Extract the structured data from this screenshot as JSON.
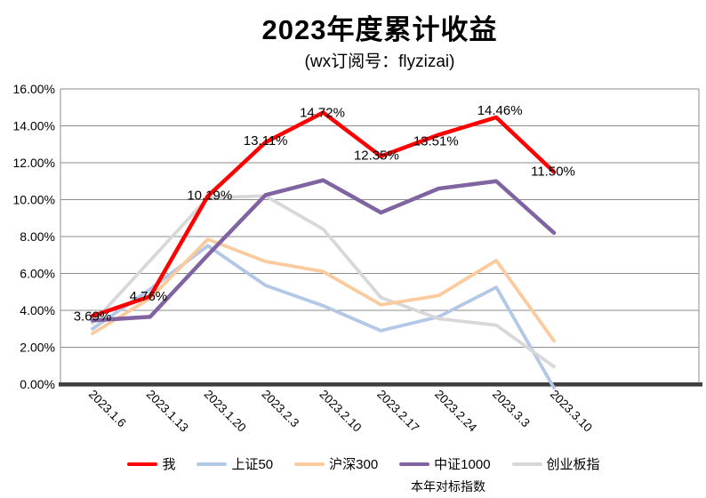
{
  "title": "2023年度累计收益",
  "subtitle": "(wx订阅号：flyzizai)",
  "chart_data": {
    "type": "line",
    "title": "2023年度累计收益",
    "subtitle": "(wx订阅号：flyzizai)",
    "categories": [
      "2023.1.6",
      "2023.1.13",
      "2023.1.20",
      "2023.2.3",
      "2023.2.10",
      "2023.2.17",
      "2023.2.24",
      "2023.3.3",
      "2023.3.10"
    ],
    "series": [
      {
        "name": "我",
        "color": "#FF0000",
        "values": [
          3.69,
          4.76,
          10.19,
          13.11,
          14.72,
          12.35,
          13.51,
          14.46,
          11.5
        ],
        "data_labels": [
          "3.69%",
          "4.76%",
          "10.19%",
          "13.11%",
          "14.72%",
          "12.35%",
          "13.51%",
          "14.46%",
          "11.50%"
        ]
      },
      {
        "name": "上证50",
        "color": "#B3C7E6",
        "values": [
          3.0,
          5.15,
          7.5,
          5.35,
          4.25,
          2.9,
          3.65,
          5.25,
          -0.2
        ]
      },
      {
        "name": "沪深300",
        "color": "#FBCB9E",
        "values": [
          2.75,
          4.65,
          7.85,
          6.65,
          6.1,
          4.3,
          4.8,
          6.7,
          2.35
        ]
      },
      {
        "name": "中证1000",
        "color": "#8064A2",
        "values": [
          3.45,
          3.65,
          7.0,
          10.25,
          11.05,
          9.3,
          10.6,
          11.0,
          8.2
        ]
      },
      {
        "name": "创业板指",
        "color": "#D8D8D8",
        "values": [
          3.3,
          6.7,
          10.1,
          10.2,
          8.4,
          4.7,
          3.55,
          3.2,
          0.95
        ]
      }
    ],
    "xlabel": "",
    "ylabel": "",
    "ylim": [
      0,
      16
    ],
    "ytick_step": 2,
    "ytick_labels": [
      "0.00%",
      "2.00%",
      "4.00%",
      "6.00%",
      "8.00%",
      "10.00%",
      "12.00%",
      "14.00%",
      "16.00%"
    ],
    "grid": true,
    "legend_position": "bottom",
    "annotation": "本年对标指数",
    "colors": {
      "gridline": "#8C8C8C",
      "axis": "#3F3F3F",
      "text": "#000000"
    }
  }
}
